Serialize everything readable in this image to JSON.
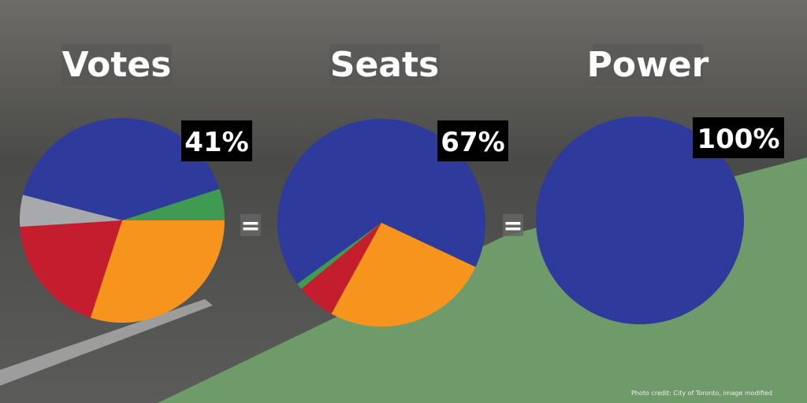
{
  "chart_data": [
    {
      "type": "pie",
      "title": "Votes",
      "values": [
        41,
        5,
        30,
        19,
        5
      ],
      "value_labels": [
        "41%",
        null,
        null,
        null,
        null
      ],
      "colors": [
        "#2e3a9c",
        "#3f9a52",
        "#f7941d",
        "#c41e2e",
        "#a7a9ac"
      ]
    },
    {
      "type": "pie",
      "title": "Seats",
      "values": [
        67,
        26,
        6,
        1
      ],
      "value_labels": [
        "67%",
        null,
        null,
        null
      ],
      "colors": [
        "#2e3a9c",
        "#f7941d",
        "#c41e2e",
        "#3f9a52"
      ]
    },
    {
      "type": "pie",
      "title": "Power",
      "values": [
        100
      ],
      "value_labels": [
        "100%"
      ],
      "colors": [
        "#2e3a9c"
      ]
    }
  ],
  "equals": [
    "=",
    "="
  ],
  "credit": "Photo credit: City of Toronto, image modified"
}
